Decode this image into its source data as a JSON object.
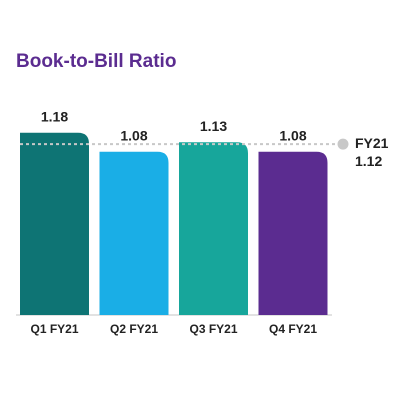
{
  "chart_data": {
    "type": "bar",
    "title": "Book-to-Bill Ratio",
    "categories": [
      "Q1 FY21",
      "Q2 FY21",
      "Q3 FY21",
      "Q4 FY21"
    ],
    "values": [
      1.18,
      1.08,
      1.13,
      1.08
    ],
    "colors": [
      "#0e7474",
      "#1aaee6",
      "#17a69b",
      "#5b2c90"
    ],
    "ylim": [
      0.22,
      1.3
    ],
    "reference_line": {
      "value": 1.12,
      "label": "FY21",
      "color": "#c8c8c8"
    }
  }
}
